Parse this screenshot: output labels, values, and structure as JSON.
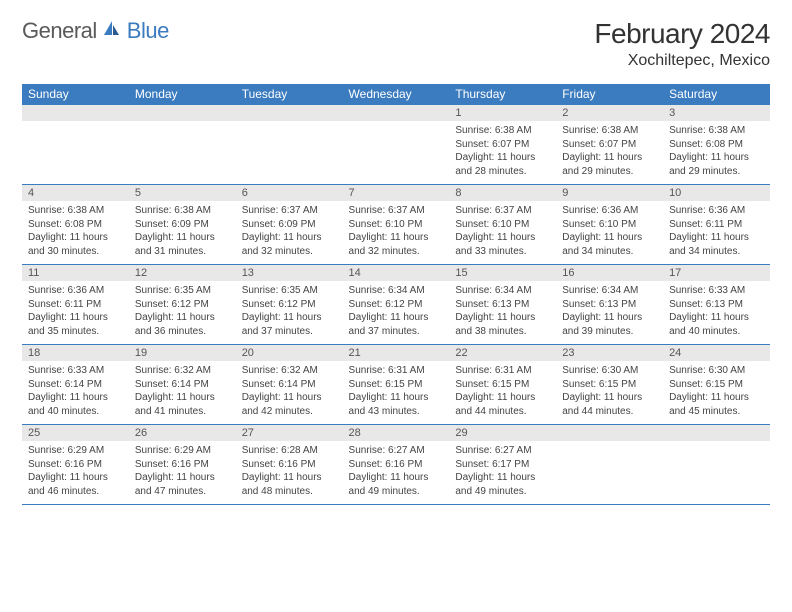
{
  "brand": {
    "text_gray": "General",
    "text_blue": "Blue",
    "gray_color": "#5a5a5a",
    "blue_color": "#3b7bbf"
  },
  "title": {
    "month": "February 2024",
    "location": "Xochiltepec, Mexico"
  },
  "styling": {
    "header_bg": "#3b7bbf",
    "header_text": "#ffffff",
    "daynum_bg": "#e8e8e8",
    "daynum_text": "#555555",
    "cell_text": "#444444",
    "border_color": "#3b7bbf",
    "page_bg": "#ffffff",
    "weekday_fontsize": 12,
    "daynum_fontsize": 11,
    "detail_fontsize": 10,
    "title_fontsize": 28,
    "location_fontsize": 16
  },
  "weekdays": [
    "Sunday",
    "Monday",
    "Tuesday",
    "Wednesday",
    "Thursday",
    "Friday",
    "Saturday"
  ],
  "weeks": [
    {
      "nums": [
        "",
        "",
        "",
        "",
        "1",
        "2",
        "3"
      ],
      "details": [
        "",
        "",
        "",
        "",
        "Sunrise: 6:38 AM\nSunset: 6:07 PM\nDaylight: 11 hours and 28 minutes.",
        "Sunrise: 6:38 AM\nSunset: 6:07 PM\nDaylight: 11 hours and 29 minutes.",
        "Sunrise: 6:38 AM\nSunset: 6:08 PM\nDaylight: 11 hours and 29 minutes."
      ]
    },
    {
      "nums": [
        "4",
        "5",
        "6",
        "7",
        "8",
        "9",
        "10"
      ],
      "details": [
        "Sunrise: 6:38 AM\nSunset: 6:08 PM\nDaylight: 11 hours and 30 minutes.",
        "Sunrise: 6:38 AM\nSunset: 6:09 PM\nDaylight: 11 hours and 31 minutes.",
        "Sunrise: 6:37 AM\nSunset: 6:09 PM\nDaylight: 11 hours and 32 minutes.",
        "Sunrise: 6:37 AM\nSunset: 6:10 PM\nDaylight: 11 hours and 32 minutes.",
        "Sunrise: 6:37 AM\nSunset: 6:10 PM\nDaylight: 11 hours and 33 minutes.",
        "Sunrise: 6:36 AM\nSunset: 6:10 PM\nDaylight: 11 hours and 34 minutes.",
        "Sunrise: 6:36 AM\nSunset: 6:11 PM\nDaylight: 11 hours and 34 minutes."
      ]
    },
    {
      "nums": [
        "11",
        "12",
        "13",
        "14",
        "15",
        "16",
        "17"
      ],
      "details": [
        "Sunrise: 6:36 AM\nSunset: 6:11 PM\nDaylight: 11 hours and 35 minutes.",
        "Sunrise: 6:35 AM\nSunset: 6:12 PM\nDaylight: 11 hours and 36 minutes.",
        "Sunrise: 6:35 AM\nSunset: 6:12 PM\nDaylight: 11 hours and 37 minutes.",
        "Sunrise: 6:34 AM\nSunset: 6:12 PM\nDaylight: 11 hours and 37 minutes.",
        "Sunrise: 6:34 AM\nSunset: 6:13 PM\nDaylight: 11 hours and 38 minutes.",
        "Sunrise: 6:34 AM\nSunset: 6:13 PM\nDaylight: 11 hours and 39 minutes.",
        "Sunrise: 6:33 AM\nSunset: 6:13 PM\nDaylight: 11 hours and 40 minutes."
      ]
    },
    {
      "nums": [
        "18",
        "19",
        "20",
        "21",
        "22",
        "23",
        "24"
      ],
      "details": [
        "Sunrise: 6:33 AM\nSunset: 6:14 PM\nDaylight: 11 hours and 40 minutes.",
        "Sunrise: 6:32 AM\nSunset: 6:14 PM\nDaylight: 11 hours and 41 minutes.",
        "Sunrise: 6:32 AM\nSunset: 6:14 PM\nDaylight: 11 hours and 42 minutes.",
        "Sunrise: 6:31 AM\nSunset: 6:15 PM\nDaylight: 11 hours and 43 minutes.",
        "Sunrise: 6:31 AM\nSunset: 6:15 PM\nDaylight: 11 hours and 44 minutes.",
        "Sunrise: 6:30 AM\nSunset: 6:15 PM\nDaylight: 11 hours and 44 minutes.",
        "Sunrise: 6:30 AM\nSunset: 6:15 PM\nDaylight: 11 hours and 45 minutes."
      ]
    },
    {
      "nums": [
        "25",
        "26",
        "27",
        "28",
        "29",
        "",
        ""
      ],
      "details": [
        "Sunrise: 6:29 AM\nSunset: 6:16 PM\nDaylight: 11 hours and 46 minutes.",
        "Sunrise: 6:29 AM\nSunset: 6:16 PM\nDaylight: 11 hours and 47 minutes.",
        "Sunrise: 6:28 AM\nSunset: 6:16 PM\nDaylight: 11 hours and 48 minutes.",
        "Sunrise: 6:27 AM\nSunset: 6:16 PM\nDaylight: 11 hours and 49 minutes.",
        "Sunrise: 6:27 AM\nSunset: 6:17 PM\nDaylight: 11 hours and 49 minutes.",
        "",
        ""
      ]
    }
  ]
}
